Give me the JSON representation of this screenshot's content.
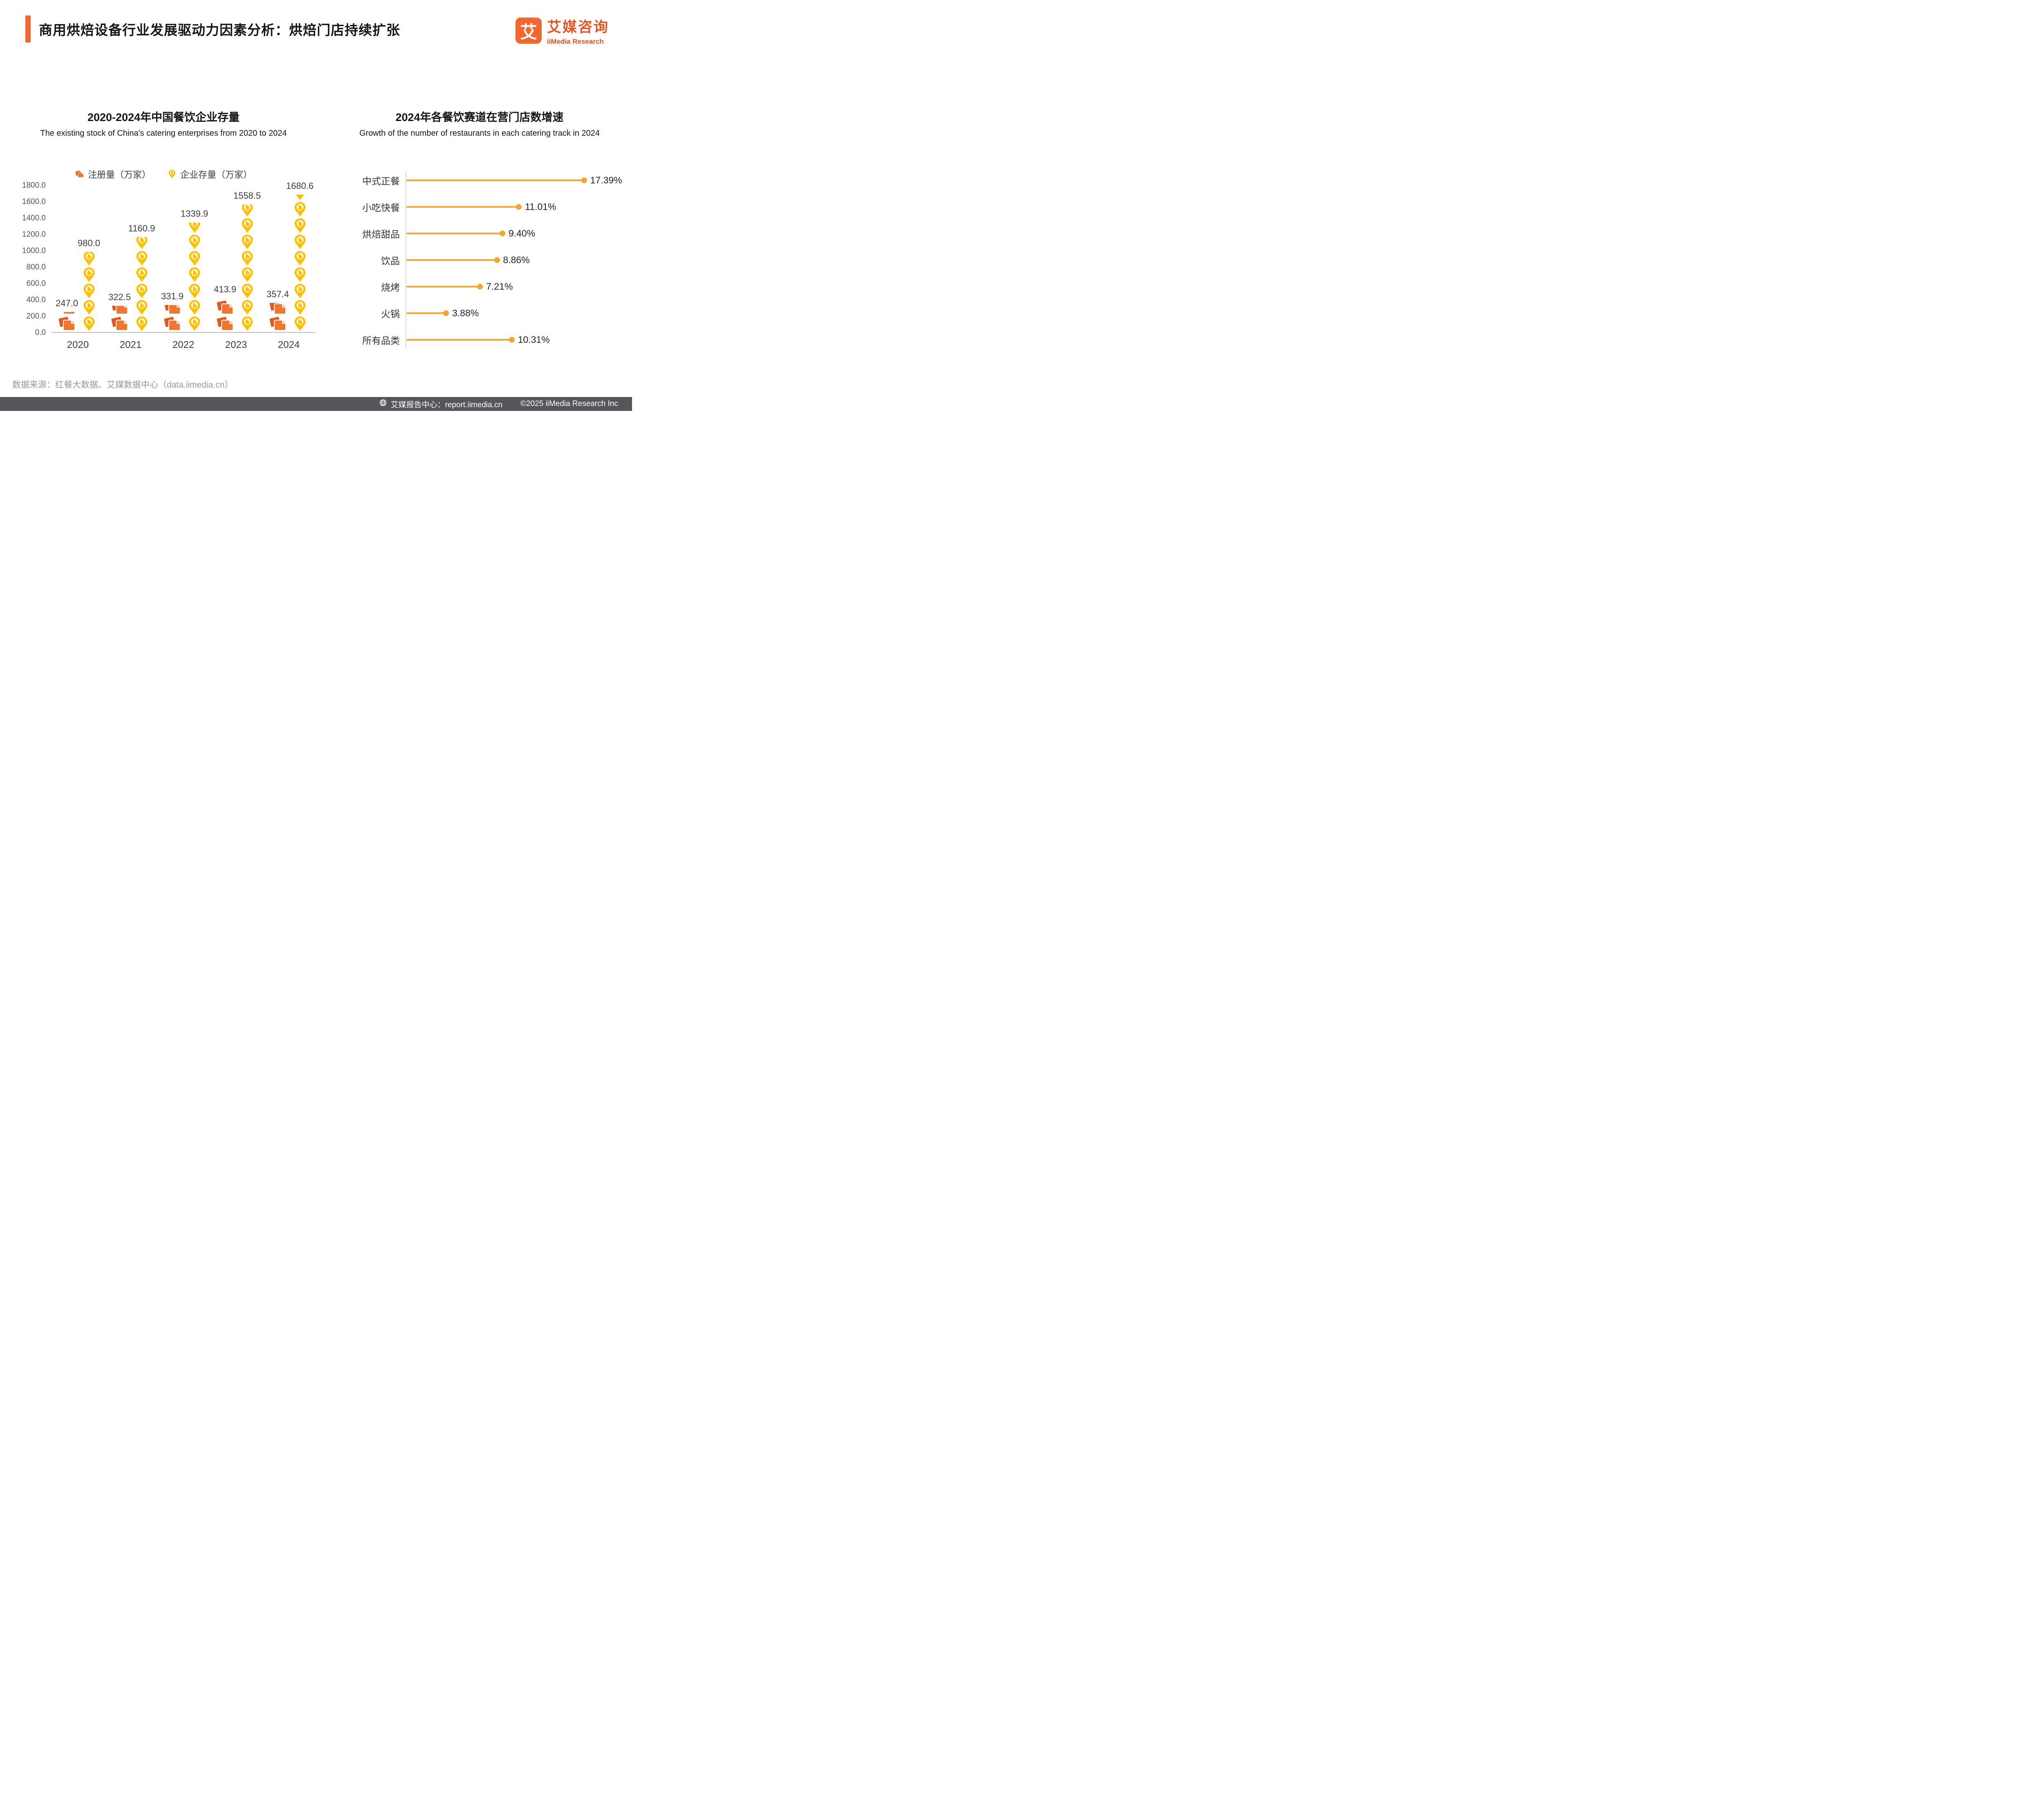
{
  "header": {
    "title": "商用烘焙设备行业发展驱动力因素分析：烘焙门店持续扩张",
    "logo": {
      "glyph": "艾",
      "brand_cn": "艾媒咨询",
      "brand_en": "iiMedia Research"
    }
  },
  "left_chart": {
    "title": "2020-2024年中国餐饮企业存量",
    "subtitle": "The existing stock of China's catering enterprises from 2020 to 2024"
  },
  "right_chart": {
    "title": "2024年各餐饮赛道在营门店数增速",
    "subtitle": "Growth of the number of restaurants in each catering track in 2024"
  },
  "chart_data": [
    {
      "type": "bar",
      "style": "pictogram",
      "title": "2020-2024年中国餐饮企业存量",
      "subtitle": "The existing stock of China's catering enterprises from 2020 to 2024",
      "categories": [
        "2020",
        "2021",
        "2022",
        "2023",
        "2024"
      ],
      "series": [
        {
          "name": "注册量（万家）",
          "icon": "document-icon",
          "color": "#F0772F",
          "values": [
            247.0,
            322.5,
            331.9,
            413.9,
            357.4
          ]
        },
        {
          "name": "企业存量（万家）",
          "icon": "location-pin-icon",
          "color": "#FFC000",
          "values": [
            980.0,
            1160.9,
            1339.9,
            1558.5,
            1680.6
          ]
        }
      ],
      "ylim": [
        0,
        1800
      ],
      "ytick_step": 200,
      "xlabel": "",
      "ylabel": "",
      "grid": false,
      "legend_position": "top"
    },
    {
      "type": "bar",
      "style": "horizontal-lollipop",
      "title": "2024年各餐饮赛道在营门店数增速",
      "subtitle": "Growth of the number of restaurants in each catering track in 2024",
      "categories": [
        "中式正餐",
        "小吃快餐",
        "烘焙甜品",
        "饮品",
        "烧烤",
        "火锅",
        "所有品类"
      ],
      "values": [
        17.39,
        11.01,
        9.4,
        8.86,
        7.21,
        3.88,
        10.31
      ],
      "value_labels": [
        "17.39%",
        "11.01%",
        "9.40%",
        "8.86%",
        "7.21%",
        "3.88%",
        "10.31%"
      ],
      "xlim": [
        0,
        18.5
      ],
      "color": "#F7A62B",
      "grid": false
    }
  ],
  "colors": {
    "accent_orange": "#F1672E",
    "logo_orange": "#E8511F",
    "registration_orange": "#F0772F",
    "stock_yellow": "#FFC000",
    "lollipop_orange": "#F7A62B",
    "footer_gray": "#55565A"
  },
  "footer": {
    "source": "数据来源：红餐大数据、艾媒数据中心（data.iimedia.cn）",
    "report_center": "艾媒报告中心：report.iimedia.cn",
    "copyright": "©2025  iiMedia Research  Inc"
  }
}
